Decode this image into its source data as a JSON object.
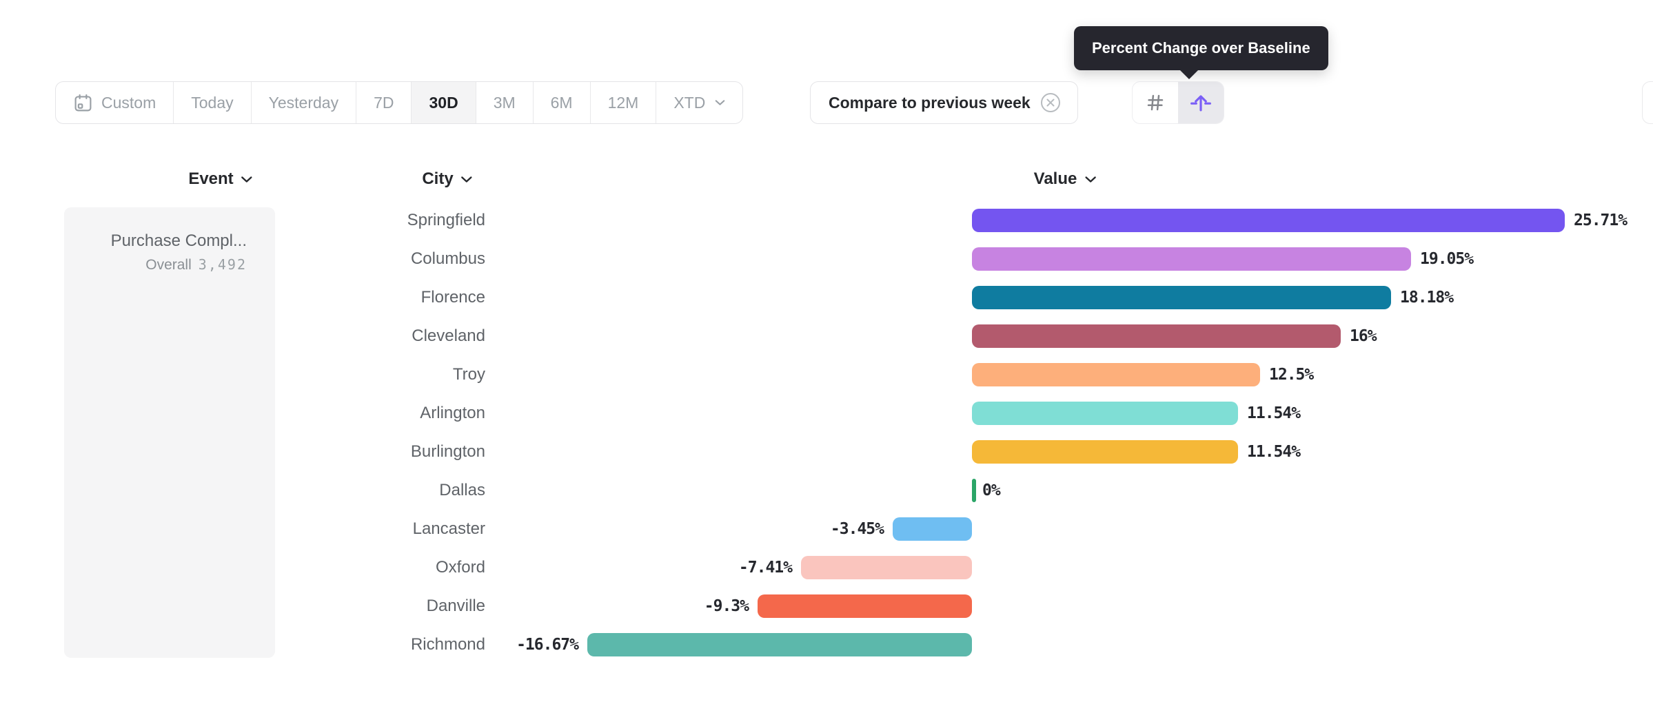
{
  "tooltip": {
    "text": "Percent Change over Baseline"
  },
  "toolbar": {
    "date_ranges": [
      {
        "label": "Custom",
        "icon": "calendar",
        "selected": false
      },
      {
        "label": "Today",
        "selected": false
      },
      {
        "label": "Yesterday",
        "selected": false
      },
      {
        "label": "7D",
        "selected": false
      },
      {
        "label": "30D",
        "selected": true
      },
      {
        "label": "3M",
        "selected": false
      },
      {
        "label": "6M",
        "selected": false
      },
      {
        "label": "12M",
        "selected": false
      },
      {
        "label": "XTD",
        "chevron": true,
        "selected": false
      }
    ],
    "compare_chip": {
      "label": "Compare to previous week",
      "close_icon": "circled-x"
    },
    "view_toggle": [
      {
        "name": "numbers-view",
        "icon": "hash",
        "selected": false
      },
      {
        "name": "percent-change-baseline-view",
        "icon": "arrow-up-over-baseline",
        "selected": true
      }
    ]
  },
  "columns": [
    {
      "label": "Event"
    },
    {
      "label": "City"
    },
    {
      "label": "Value"
    }
  ],
  "event_panel": {
    "title": "Purchase Compl...",
    "overall_label": "Overall",
    "overall_value": "3,492"
  },
  "chart_data": {
    "type": "bar",
    "orientation": "horizontal",
    "value_unit": "percent",
    "baseline": 0,
    "xlim": [
      -16.67,
      25.71
    ],
    "categories": [
      "Springfield",
      "Columbus",
      "Florence",
      "Cleveland",
      "Troy",
      "Arlington",
      "Burlington",
      "Dallas",
      "Lancaster",
      "Oxford",
      "Danville",
      "Richmond"
    ],
    "values": [
      25.71,
      19.05,
      18.18,
      16,
      12.5,
      11.54,
      11.54,
      0,
      -3.45,
      -7.41,
      -9.3,
      -16.67
    ],
    "labels": [
      "25.71%",
      "19.05%",
      "18.18%",
      "16%",
      "12.5%",
      "11.54%",
      "11.54%",
      "0%",
      "-3.45%",
      "-7.41%",
      "-9.3%",
      "-16.67%"
    ],
    "colors": [
      "#7455F0",
      "#C783E1",
      "#0F7CA0",
      "#B35A6D",
      "#FDAF7B",
      "#7FDED5",
      "#F5B838",
      "#2BA567",
      "#6FBEF2",
      "#FAC5BE",
      "#F4684B",
      "#5CB8AB"
    ]
  },
  "ui_colors": {
    "accent_purple": "#7B5FF6",
    "tooltip_bg": "#26262e",
    "muted_text": "#9aa0a6",
    "dark_text": "#26282c",
    "city_text": "#5f6368",
    "panel_bg": "#f5f5f6",
    "border": "#e4e4e7",
    "selected_segment_bg": "#f4f4f5",
    "selected_toggle_bg": "#e9e9ed"
  }
}
